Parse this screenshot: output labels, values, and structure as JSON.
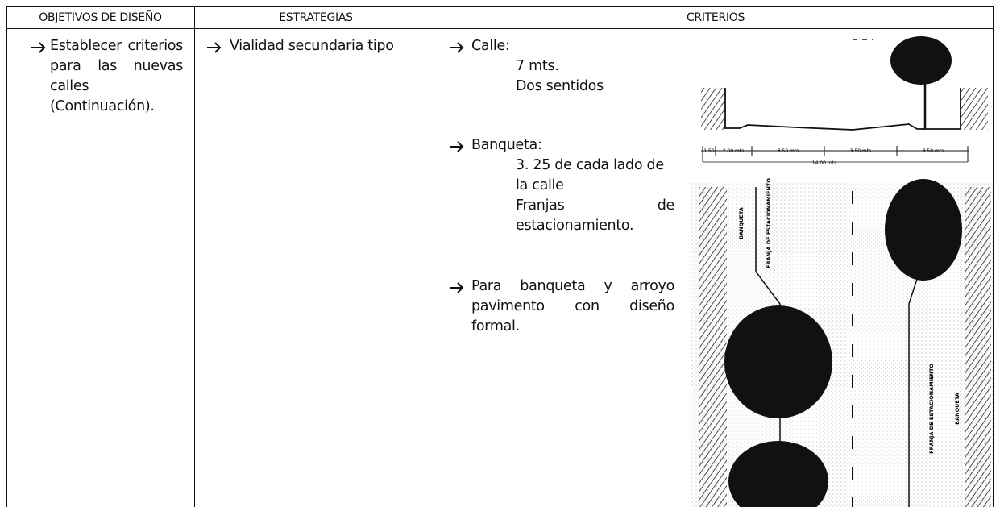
{
  "table": {
    "headers": [
      "OBJETIVOS DE DISEÑO",
      "ESTRATEGIAS",
      "CRITERIOS"
    ],
    "rows": [
      {
        "objetivo": "Establecer criterios para las nuevas calles (Continuación).",
        "estrategia": "Vialidad secundaria tipo",
        "criterios": [
          {
            "label": "Calle:",
            "details": [
              "7 mts.",
              "Dos sentidos"
            ]
          },
          {
            "label": "Banqueta:",
            "details": [
              "3. 25 de cada lado de la calle",
              "Franjas de estacionamiento."
            ]
          },
          {
            "label": "Para banqueta y arroyo pavimento con diseño formal."
          }
        ]
      }
    ]
  },
  "drawing": {
    "section_dimensions": [
      "1.50",
      "2.00 mts",
      "3.50 mts",
      "3.50 mts",
      "3.50 mts"
    ],
    "total_width": "14.00 mts",
    "plan_labels": [
      "BANQUETA",
      "FRANJA DE ESTACIONAMIENTO"
    ]
  }
}
